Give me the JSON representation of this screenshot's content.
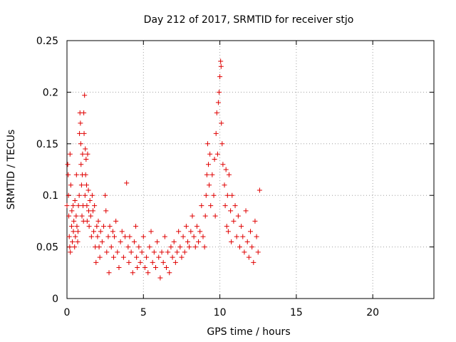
{
  "chart_data": {
    "type": "scatter",
    "title": "Day 212 of 2017, SRMTID for receiver stjo",
    "xlabel": "GPS time / hours",
    "ylabel": "SRMTID / TECUs",
    "xlim": [
      0,
      24
    ],
    "ylim": [
      0,
      0.25
    ],
    "xticks": [
      "0",
      "5",
      "10",
      "15",
      "20"
    ],
    "yticks": [
      "0",
      "0.05",
      "0.1",
      "0.15",
      "0.2",
      "0.25"
    ],
    "grid": true,
    "marker": "+",
    "color": "#e00000",
    "x_data_extent": [
      0,
      12.7
    ],
    "series": [
      {
        "values": [
          [
            0.0,
            0.09
          ],
          [
            0.05,
            0.13
          ],
          [
            0.08,
            0.12
          ],
          [
            0.1,
            0.1
          ],
          [
            0.12,
            0.08
          ],
          [
            0.15,
            0.06
          ],
          [
            0.18,
            0.05
          ],
          [
            0.2,
            0.14
          ],
          [
            0.22,
            0.045
          ],
          [
            0.25,
            0.11
          ],
          [
            0.3,
            0.07
          ],
          [
            0.32,
            0.085
          ],
          [
            0.35,
            0.055
          ],
          [
            0.4,
            0.09
          ],
          [
            0.42,
            0.065
          ],
          [
            0.45,
            0.075
          ],
          [
            0.5,
            0.05
          ],
          [
            0.52,
            0.095
          ],
          [
            0.55,
            0.06
          ],
          [
            0.6,
            0.08
          ],
          [
            0.62,
            0.12
          ],
          [
            0.65,
            0.07
          ],
          [
            0.7,
            0.055
          ],
          [
            0.72,
            0.065
          ],
          [
            0.75,
            0.09
          ],
          [
            0.8,
            0.1
          ],
          [
            0.82,
            0.16
          ],
          [
            0.85,
            0.18
          ],
          [
            0.88,
            0.17
          ],
          [
            0.9,
            0.15
          ],
          [
            0.92,
            0.13
          ],
          [
            0.95,
            0.11
          ],
          [
            0.98,
            0.08
          ],
          [
            1.0,
            0.12
          ],
          [
            1.02,
            0.14
          ],
          [
            1.05,
            0.09
          ],
          [
            1.08,
            0.075
          ],
          [
            1.1,
            0.18
          ],
          [
            1.12,
            0.16
          ],
          [
            1.15,
            0.197
          ],
          [
            1.18,
            0.1
          ],
          [
            1.2,
            0.145
          ],
          [
            1.22,
            0.12
          ],
          [
            1.25,
            0.135
          ],
          [
            1.28,
            0.11
          ],
          [
            1.3,
            0.09
          ],
          [
            1.32,
            0.075
          ],
          [
            1.35,
            0.14
          ],
          [
            1.4,
            0.105
          ],
          [
            1.42,
            0.085
          ],
          [
            1.45,
            0.07
          ],
          [
            1.5,
            0.095
          ],
          [
            1.55,
            0.08
          ],
          [
            1.6,
            0.06
          ],
          [
            1.65,
            0.1
          ],
          [
            1.7,
            0.085
          ],
          [
            1.75,
            0.065
          ],
          [
            1.8,
            0.09
          ],
          [
            1.85,
            0.05
          ],
          [
            1.9,
            0.035
          ],
          [
            1.95,
            0.07
          ],
          [
            2.0,
            0.06
          ],
          [
            2.05,
            0.075
          ],
          [
            2.1,
            0.05
          ],
          [
            2.15,
            0.04
          ],
          [
            2.2,
            0.065
          ],
          [
            2.3,
            0.055
          ],
          [
            2.4,
            0.07
          ],
          [
            2.5,
            0.1
          ],
          [
            2.55,
            0.085
          ],
          [
            2.6,
            0.045
          ],
          [
            2.7,
            0.06
          ],
          [
            2.75,
            0.025
          ],
          [
            2.8,
            0.07
          ],
          [
            2.9,
            0.05
          ],
          [
            3.0,
            0.065
          ],
          [
            3.05,
            0.04
          ],
          [
            3.1,
            0.06
          ],
          [
            3.2,
            0.075
          ],
          [
            3.3,
            0.045
          ],
          [
            3.4,
            0.03
          ],
          [
            3.5,
            0.055
          ],
          [
            3.6,
            0.065
          ],
          [
            3.7,
            0.04
          ],
          [
            3.8,
            0.06
          ],
          [
            3.9,
            0.112
          ],
          [
            4.0,
            0.05
          ],
          [
            4.05,
            0.035
          ],
          [
            4.1,
            0.06
          ],
          [
            4.2,
            0.045
          ],
          [
            4.3,
            0.025
          ],
          [
            4.4,
            0.055
          ],
          [
            4.5,
            0.07
          ],
          [
            4.55,
            0.04
          ],
          [
            4.6,
            0.03
          ],
          [
            4.7,
            0.05
          ],
          [
            4.8,
            0.035
          ],
          [
            4.9,
            0.045
          ],
          [
            5.0,
            0.06
          ],
          [
            5.1,
            0.03
          ],
          [
            5.2,
            0.04
          ],
          [
            5.3,
            0.025
          ],
          [
            5.4,
            0.05
          ],
          [
            5.5,
            0.065
          ],
          [
            5.6,
            0.035
          ],
          [
            5.7,
            0.045
          ],
          [
            5.8,
            0.03
          ],
          [
            5.9,
            0.055
          ],
          [
            6.0,
            0.04
          ],
          [
            6.1,
            0.02
          ],
          [
            6.2,
            0.045
          ],
          [
            6.3,
            0.035
          ],
          [
            6.4,
            0.06
          ],
          [
            6.5,
            0.03
          ],
          [
            6.6,
            0.045
          ],
          [
            6.7,
            0.025
          ],
          [
            6.8,
            0.05
          ],
          [
            6.9,
            0.04
          ],
          [
            7.0,
            0.055
          ],
          [
            7.1,
            0.035
          ],
          [
            7.2,
            0.045
          ],
          [
            7.3,
            0.065
          ],
          [
            7.4,
            0.05
          ],
          [
            7.5,
            0.04
          ],
          [
            7.6,
            0.06
          ],
          [
            7.7,
            0.045
          ],
          [
            7.8,
            0.07
          ],
          [
            7.9,
            0.055
          ],
          [
            8.0,
            0.05
          ],
          [
            8.1,
            0.065
          ],
          [
            8.2,
            0.08
          ],
          [
            8.3,
            0.06
          ],
          [
            8.4,
            0.05
          ],
          [
            8.5,
            0.07
          ],
          [
            8.6,
            0.055
          ],
          [
            8.7,
            0.065
          ],
          [
            8.8,
            0.09
          ],
          [
            8.9,
            0.06
          ],
          [
            9.0,
            0.05
          ],
          [
            9.05,
            0.08
          ],
          [
            9.1,
            0.1
          ],
          [
            9.15,
            0.12
          ],
          [
            9.2,
            0.15
          ],
          [
            9.25,
            0.13
          ],
          [
            9.3,
            0.11
          ],
          [
            9.35,
            0.14
          ],
          [
            9.4,
            0.09
          ],
          [
            9.5,
            0.12
          ],
          [
            9.6,
            0.1
          ],
          [
            9.65,
            0.135
          ],
          [
            9.7,
            0.08
          ],
          [
            9.75,
            0.16
          ],
          [
            9.8,
            0.18
          ],
          [
            9.85,
            0.14
          ],
          [
            9.9,
            0.19
          ],
          [
            9.95,
            0.2
          ],
          [
            10.0,
            0.215
          ],
          [
            10.05,
            0.23
          ],
          [
            10.08,
            0.225
          ],
          [
            10.1,
            0.17
          ],
          [
            10.15,
            0.15
          ],
          [
            10.2,
            0.13
          ],
          [
            10.3,
            0.11
          ],
          [
            10.35,
            0.09
          ],
          [
            10.4,
            0.125
          ],
          [
            10.45,
            0.07
          ],
          [
            10.5,
            0.1
          ],
          [
            10.55,
            0.065
          ],
          [
            10.6,
            0.12
          ],
          [
            10.7,
            0.085
          ],
          [
            10.75,
            0.055
          ],
          [
            10.8,
            0.1
          ],
          [
            10.9,
            0.075
          ],
          [
            11.0,
            0.09
          ],
          [
            11.1,
            0.06
          ],
          [
            11.2,
            0.08
          ],
          [
            11.3,
            0.05
          ],
          [
            11.4,
            0.07
          ],
          [
            11.5,
            0.06
          ],
          [
            11.6,
            0.045
          ],
          [
            11.7,
            0.085
          ],
          [
            11.8,
            0.055
          ],
          [
            11.9,
            0.04
          ],
          [
            12.0,
            0.065
          ],
          [
            12.1,
            0.05
          ],
          [
            12.2,
            0.035
          ],
          [
            12.3,
            0.075
          ],
          [
            12.4,
            0.06
          ],
          [
            12.5,
            0.045
          ],
          [
            12.6,
            0.105
          ]
        ]
      }
    ]
  }
}
